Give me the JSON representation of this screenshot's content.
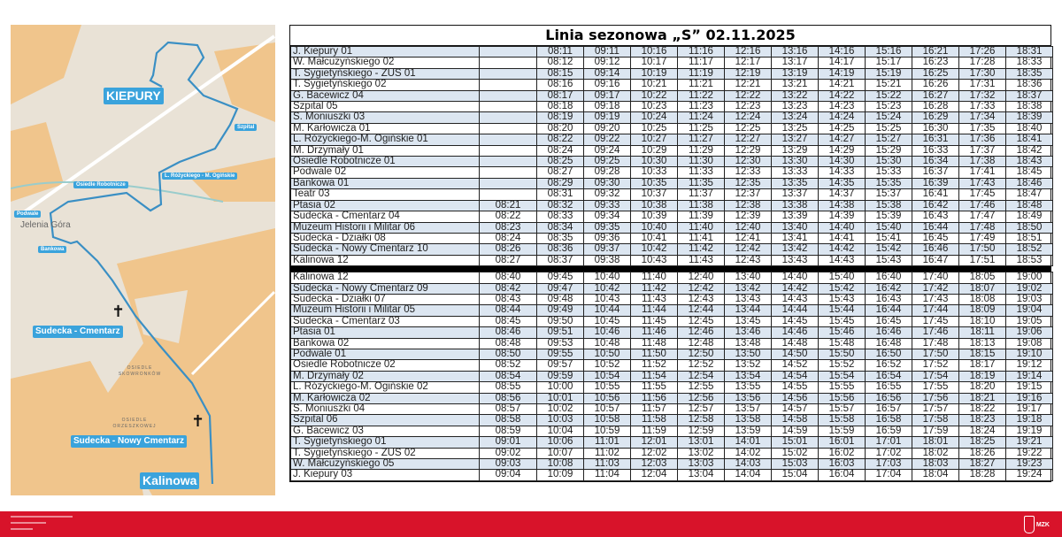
{
  "map": {
    "labels": {
      "kiepury": "KIEPURY",
      "szpital": "Szpital",
      "rozyckiego": "L. Różyckiego - M. Ogińskie",
      "osiedle_robotnicze": "Osiedle Robotnicze",
      "podwale": "Podwale",
      "bankowa": "Bankowa",
      "sudecka_cmentarz": "Sudecka - Cmentarz",
      "sudecka_nowy": "Sudecka - Nowy Cmentarz",
      "kalinowa": "Kalinowa"
    },
    "place_names": {
      "city": "Jelenia Góra",
      "skowronkow": "OSIEDLE SKOWRONKÓW",
      "orzeszkowej": "OSIEDLE ORZESZKOWEJ"
    },
    "icons": [
      "cemetery-cross-icon"
    ],
    "route_color": "#3a8fc4"
  },
  "timetable": {
    "title": "Linia sezonowa „S” 02.11.2025",
    "stripe_color": "#dce6f1",
    "outbound": [
      [
        "J. Kiepury 01",
        "",
        "08:11",
        "09:11",
        "10:16",
        "11:16",
        "12:16",
        "13:16",
        "14:16",
        "15:16",
        "16:21",
        "17:26",
        "18:31"
      ],
      [
        "W. Małcużyńskiego 02",
        "",
        "08:12",
        "09:12",
        "10:17",
        "11:17",
        "12:17",
        "13:17",
        "14:17",
        "15:17",
        "16:23",
        "17:28",
        "18:33"
      ],
      [
        "T. Sygietyńskiego - ZUS 01",
        "",
        "08:15",
        "09:14",
        "10:19",
        "11:19",
        "12:19",
        "13:19",
        "14:19",
        "15:19",
        "16:25",
        "17:30",
        "18:35"
      ],
      [
        "T. Sygietyńskiego 02",
        "",
        "08:16",
        "09:16",
        "10:21",
        "11:21",
        "12:21",
        "13:21",
        "14:21",
        "15:21",
        "16:26",
        "17:31",
        "18:36"
      ],
      [
        "G. Bacewicz 04",
        "",
        "08:17",
        "09:17",
        "10:22",
        "11:22",
        "12:22",
        "13:22",
        "14:22",
        "15:22",
        "16:27",
        "17:32",
        "18:37"
      ],
      [
        "Szpital 05",
        "",
        "08:18",
        "09:18",
        "10:23",
        "11:23",
        "12:23",
        "13:23",
        "14:23",
        "15:23",
        "16:28",
        "17:33",
        "18:38"
      ],
      [
        "S. Moniuszki 03",
        "",
        "08:19",
        "09:19",
        "10:24",
        "11:24",
        "12:24",
        "13:24",
        "14:24",
        "15:24",
        "16:29",
        "17:34",
        "18:39"
      ],
      [
        "M. Karłowicza 01",
        "",
        "08:20",
        "09:20",
        "10:25",
        "11:25",
        "12:25",
        "13:25",
        "14:25",
        "15:25",
        "16:30",
        "17:35",
        "18:40"
      ],
      [
        "L. Różyckiego-M. Ogińskie 01",
        "",
        "08:22",
        "09:22",
        "10:27",
        "11:27",
        "12:27",
        "13:27",
        "14:27",
        "15:27",
        "16:31",
        "17:36",
        "18:41"
      ],
      [
        "M. Drzymały 01",
        "",
        "08:24",
        "09:24",
        "10:29",
        "11:29",
        "12:29",
        "13:29",
        "14:29",
        "15:29",
        "16:33",
        "17:37",
        "18:42"
      ],
      [
        "Osiedle Robotnicze 01",
        "",
        "08:25",
        "09:25",
        "10:30",
        "11:30",
        "12:30",
        "13:30",
        "14:30",
        "15:30",
        "16:34",
        "17:38",
        "18:43"
      ],
      [
        "Podwale 02",
        "",
        "08:27",
        "09:28",
        "10:33",
        "11:33",
        "12:33",
        "13:33",
        "14:33",
        "15:33",
        "16:37",
        "17:41",
        "18:45"
      ],
      [
        "Bankowa 01",
        "",
        "08:29",
        "09:30",
        "10:35",
        "11:35",
        "12:35",
        "13:35",
        "14:35",
        "15:35",
        "16:39",
        "17:43",
        "18:46"
      ],
      [
        "Teatr 03",
        "",
        "08:31",
        "09:32",
        "10:37",
        "11:37",
        "12:37",
        "13:37",
        "14:37",
        "15:37",
        "16:41",
        "17:45",
        "18:47"
      ],
      [
        "Ptasia 02",
        "08:21",
        "08:32",
        "09:33",
        "10:38",
        "11:38",
        "12:38",
        "13:38",
        "14:38",
        "15:38",
        "16:42",
        "17:46",
        "18:48"
      ],
      [
        "Sudecka - Cmentarz 04",
        "08:22",
        "08:33",
        "09:34",
        "10:39",
        "11:39",
        "12:39",
        "13:39",
        "14:39",
        "15:39",
        "16:43",
        "17:47",
        "18:49"
      ],
      [
        "Muzeum Historii i Militar 06",
        "08:23",
        "08:34",
        "09:35",
        "10:40",
        "11:40",
        "12:40",
        "13:40",
        "14:40",
        "15:40",
        "16:44",
        "17:48",
        "18:50"
      ],
      [
        "Sudecka - Działki 08",
        "08:24",
        "08:35",
        "09:36",
        "10:41",
        "11:41",
        "12:41",
        "13:41",
        "14:41",
        "15:41",
        "16:45",
        "17:49",
        "18:51"
      ],
      [
        "Sudecka - Nowy Cmentarz 10",
        "08:26",
        "08:36",
        "09:37",
        "10:42",
        "11:42",
        "12:42",
        "13:42",
        "14:42",
        "15:42",
        "16:46",
        "17:50",
        "18:52"
      ],
      [
        "Kalinowa 12",
        "08:27",
        "08:37",
        "09:38",
        "10:43",
        "11:43",
        "12:43",
        "13:43",
        "14:43",
        "15:43",
        "16:47",
        "17:51",
        "18:53"
      ]
    ],
    "inbound": [
      [
        "Kalinowa 12",
        "08:40",
        "09:45",
        "10:40",
        "11:40",
        "12:40",
        "13:40",
        "14:40",
        "15:40",
        "16:40",
        "17:40",
        "18:05",
        "19:00"
      ],
      [
        "Sudecka - Nowy Cmentarz 09",
        "08:42",
        "09:47",
        "10:42",
        "11:42",
        "12:42",
        "13:42",
        "14:42",
        "15:42",
        "16:42",
        "17:42",
        "18:07",
        "19:02"
      ],
      [
        "Sudecka - Działki 07",
        "08:43",
        "09:48",
        "10:43",
        "11:43",
        "12:43",
        "13:43",
        "14:43",
        "15:43",
        "16:43",
        "17:43",
        "18:08",
        "19:03"
      ],
      [
        "Muzeum Historii i Militar 05",
        "08:44",
        "09:49",
        "10:44",
        "11:44",
        "12:44",
        "13:44",
        "14:44",
        "15:44",
        "16:44",
        "17:44",
        "18:09",
        "19:04"
      ],
      [
        "Sudecka - Cmentarz 03",
        "08:45",
        "09:50",
        "10:45",
        "11:45",
        "12:45",
        "13:45",
        "14:45",
        "15:45",
        "16:45",
        "17:45",
        "18:10",
        "19:05"
      ],
      [
        "Ptasia 01",
        "08:46",
        "09:51",
        "10:46",
        "11:46",
        "12:46",
        "13:46",
        "14:46",
        "15:46",
        "16:46",
        "17:46",
        "18:11",
        "19:06"
      ],
      [
        "Bankowa 02",
        "08:48",
        "09:53",
        "10:48",
        "11:48",
        "12:48",
        "13:48",
        "14:48",
        "15:48",
        "16:48",
        "17:48",
        "18:13",
        "19:08"
      ],
      [
        "Podwale 01",
        "08:50",
        "09:55",
        "10:50",
        "11:50",
        "12:50",
        "13:50",
        "14:50",
        "15:50",
        "16:50",
        "17:50",
        "18:15",
        "19:10"
      ],
      [
        "Osiedle Robotnicze 02",
        "08:52",
        "09:57",
        "10:52",
        "11:52",
        "12:52",
        "13:52",
        "14:52",
        "15:52",
        "16:52",
        "17:52",
        "18:17",
        "19:12"
      ],
      [
        "M. Drzymały 02",
        "08:54",
        "09:59",
        "10:54",
        "11:54",
        "12:54",
        "13:54",
        "14:54",
        "15:54",
        "16:54",
        "17:54",
        "18:19",
        "19:14"
      ],
      [
        "L. Różyckiego-M. Ogińskie 02",
        "08:55",
        "10:00",
        "10:55",
        "11:55",
        "12:55",
        "13:55",
        "14:55",
        "15:55",
        "16:55",
        "17:55",
        "18:20",
        "19:15"
      ],
      [
        "M. Karłowicza 02",
        "08:56",
        "10:01",
        "10:56",
        "11:56",
        "12:56",
        "13:56",
        "14:56",
        "15:56",
        "16:56",
        "17:56",
        "18:21",
        "19:16"
      ],
      [
        "S. Moniuszki 04",
        "08:57",
        "10:02",
        "10:57",
        "11:57",
        "12:57",
        "13:57",
        "14:57",
        "15:57",
        "16:57",
        "17:57",
        "18:22",
        "19:17"
      ],
      [
        "Szpital 06",
        "08:58",
        "10:03",
        "10:58",
        "11:58",
        "12:58",
        "13:58",
        "14:58",
        "15:58",
        "16:58",
        "17:58",
        "18:23",
        "19:18"
      ],
      [
        "G. Bacewicz 03",
        "08:59",
        "10:04",
        "10:59",
        "11:59",
        "12:59",
        "13:59",
        "14:59",
        "15:59",
        "16:59",
        "17:59",
        "18:24",
        "19:19"
      ],
      [
        "T. Sygietyńskiego 01",
        "09:01",
        "10:06",
        "11:01",
        "12:01",
        "13:01",
        "14:01",
        "15:01",
        "16:01",
        "17:01",
        "18:01",
        "18:25",
        "19:21"
      ],
      [
        "T. Sygietyńskiego - ZUS 02",
        "09:02",
        "10:07",
        "11:02",
        "12:02",
        "13:02",
        "14:02",
        "15:02",
        "16:02",
        "17:02",
        "18:02",
        "18:26",
        "19:22"
      ],
      [
        "W. Małcużyńskiego 05",
        "09:03",
        "10:08",
        "11:03",
        "12:03",
        "13:03",
        "14:03",
        "15:03",
        "16:03",
        "17:03",
        "18:03",
        "18:27",
        "19:23"
      ],
      [
        "J. Kiepury 03",
        "09:04",
        "10:09",
        "11:04",
        "12:04",
        "13:04",
        "14:04",
        "15:04",
        "16:04",
        "17:04",
        "18:04",
        "18:28",
        "19:24"
      ]
    ]
  },
  "footer": {
    "color": "#d8132a",
    "logo_text": "MZK"
  }
}
